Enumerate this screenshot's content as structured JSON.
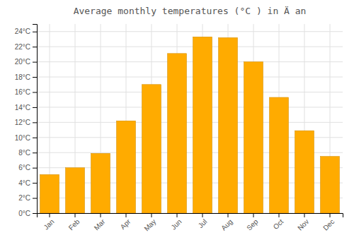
{
  "chart_data": {
    "type": "bar",
    "title": "Average monthly temperatures (°C ) in Ä an",
    "categories": [
      "Jan",
      "Feb",
      "Mar",
      "Apr",
      "May",
      "Jun",
      "Jul",
      "Aug",
      "Sep",
      "Oct",
      "Nov",
      "Dec"
    ],
    "values": [
      5.1,
      6.0,
      7.9,
      12.2,
      17.0,
      21.1,
      23.3,
      23.2,
      20.0,
      15.3,
      10.9,
      7.5
    ],
    "color": "#FFAB00",
    "ylim": [
      0,
      25
    ],
    "yticks": [
      {
        "value": 0,
        "label": "0°C"
      },
      {
        "value": 2,
        "label": "2°C"
      },
      {
        "value": 4,
        "label": "4°C"
      },
      {
        "value": 6,
        "label": "6°C"
      },
      {
        "value": 8,
        "label": "8°C"
      },
      {
        "value": 10,
        "label": "10°C"
      },
      {
        "value": 12,
        "label": "12°C"
      },
      {
        "value": 14,
        "label": "14°C"
      },
      {
        "value": 16,
        "label": "16°C"
      },
      {
        "value": 18,
        "label": "18°C"
      },
      {
        "value": 20,
        "label": "20°C"
      },
      {
        "value": 22,
        "label": "22°C"
      },
      {
        "value": 24,
        "label": "24°C"
      }
    ],
    "grid": true
  }
}
